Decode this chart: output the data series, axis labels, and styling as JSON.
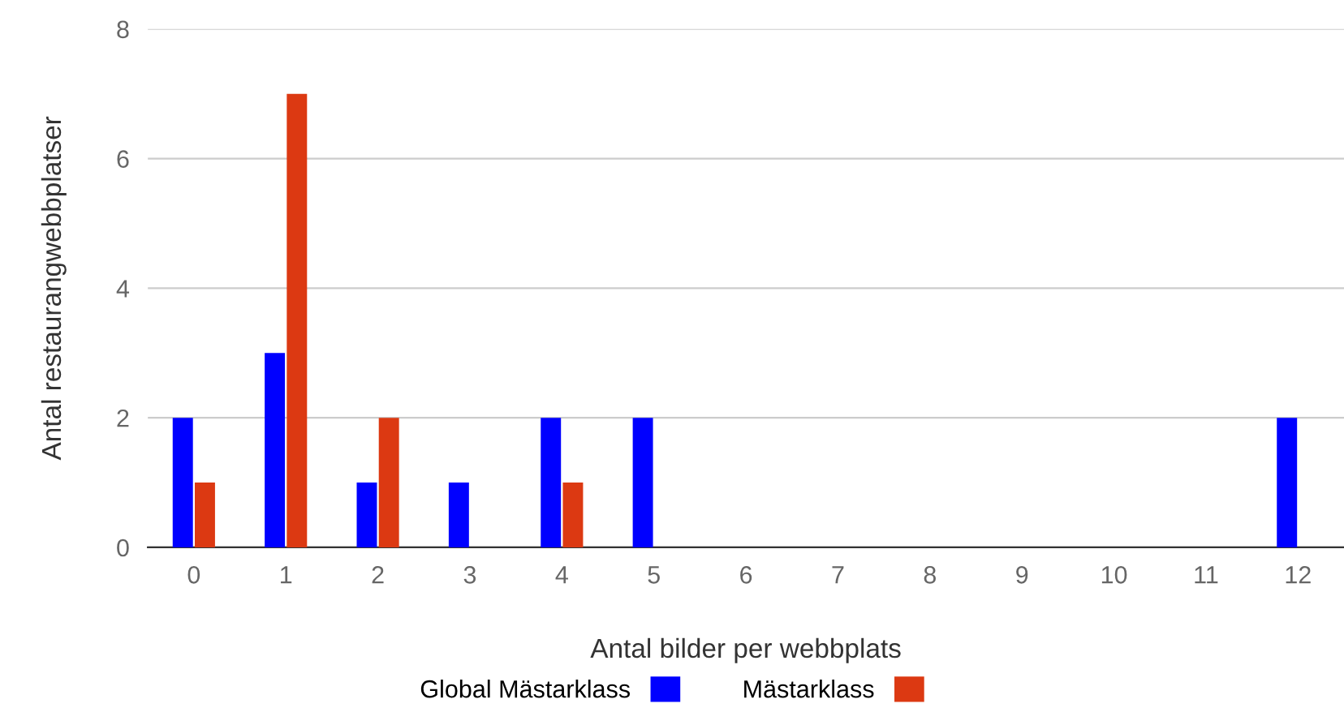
{
  "chart_data": {
    "type": "bar",
    "xlabel": "Antal bilder per webbplats",
    "ylabel": "Antal restaurangwebbplatser",
    "categories": [
      "0",
      "1",
      "2",
      "3",
      "4",
      "5",
      "6",
      "7",
      "8",
      "9",
      "10",
      "11",
      "12"
    ],
    "series": [
      {
        "name": "Global Mästarklass",
        "color": "#0000ff",
        "values": [
          2,
          3,
          1,
          1,
          2,
          2,
          0,
          0,
          0,
          0,
          0,
          0,
          2
        ]
      },
      {
        "name": "Mästarklass",
        "color": "#dc3912",
        "values": [
          1,
          7,
          2,
          0,
          1,
          0,
          0,
          0,
          0,
          0,
          0,
          0,
          0
        ]
      }
    ],
    "ylim": [
      0,
      8
    ],
    "yticks": [
      0,
      2,
      4,
      6,
      8
    ],
    "grid": "y",
    "legend": "bottom"
  }
}
